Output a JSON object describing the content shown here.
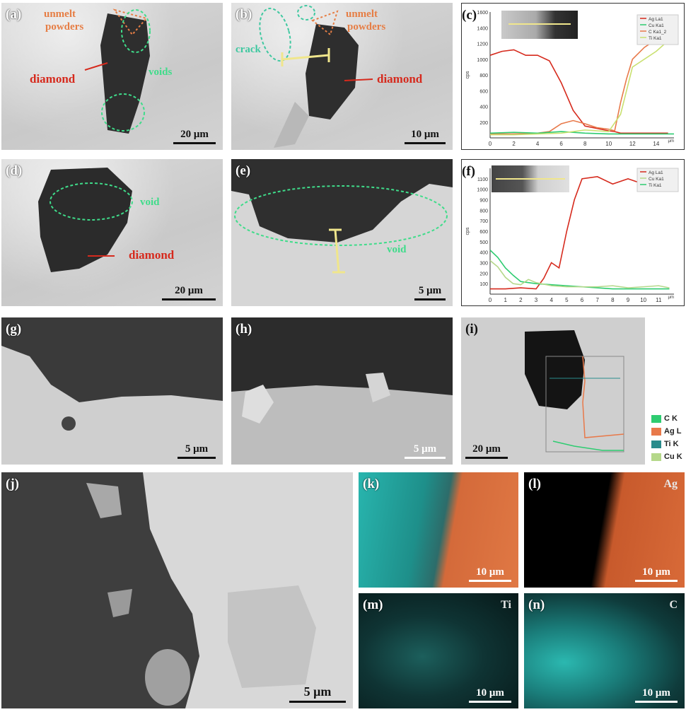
{
  "panels": {
    "a": {
      "label": "(a)",
      "annots": [
        "unmelt",
        "powders",
        "diamond",
        "voids"
      ],
      "scale": "20 μm"
    },
    "b": {
      "label": "(b)",
      "annots": [
        "unmelt",
        "powders",
        "crack",
        "diamond"
      ],
      "scale": "10 μm"
    },
    "c": {
      "label": "(c)"
    },
    "d": {
      "label": "(d)",
      "annots": [
        "void",
        "diamond"
      ],
      "scale": "20 μm"
    },
    "e": {
      "label": "(e)",
      "annots": [
        "void"
      ],
      "scale": "5 μm"
    },
    "f": {
      "label": "(f)"
    },
    "g": {
      "label": "(g)",
      "scale": "5 μm"
    },
    "h": {
      "label": "(h)",
      "scale": "5 μm"
    },
    "i": {
      "label": "(i)",
      "scale": "20 μm",
      "legend": [
        {
          "name": "C K",
          "color": "#2ecc71"
        },
        {
          "name": "Ag L",
          "color": "#e8794a"
        },
        {
          "name": "Ti K",
          "color": "#2a8c8c"
        },
        {
          "name": "Cu K",
          "color": "#b5d88a"
        }
      ]
    },
    "j": {
      "label": "(j)",
      "scale": "5 μm"
    },
    "k": {
      "label": "(k)",
      "scale": "10 μm"
    },
    "l": {
      "label": "(l)",
      "element": "Ag",
      "scale": "10 μm"
    },
    "m": {
      "label": "(m)",
      "element": "Ti",
      "scale": "10 μm"
    },
    "n": {
      "label": "(n)",
      "element": "C",
      "scale": "10 μm"
    }
  },
  "chart_data": [
    {
      "panel": "c",
      "type": "line",
      "xlabel": "μm",
      "ylabel": "cps",
      "xlim": [
        0,
        15.5
      ],
      "ylim": [
        0,
        1600
      ],
      "xticks": [
        0,
        2,
        4,
        6,
        8,
        10,
        12,
        14
      ],
      "yticks": [
        200,
        400,
        600,
        800,
        1000,
        1200,
        1400,
        1600
      ],
      "legend": [
        "Ag La1",
        "Cu Ka1",
        "C Ka1_2",
        "Ti Ka1"
      ],
      "series": [
        {
          "name": "Ag La1",
          "color": "#d62a1d",
          "x": [
            0,
            1,
            2,
            3,
            4,
            5,
            6,
            7,
            8,
            9,
            10,
            10.5,
            11,
            11.5,
            12,
            13,
            14,
            15
          ],
          "y": [
            1050,
            1100,
            1120,
            1050,
            1050,
            980,
            700,
            350,
            150,
            120,
            90,
            80,
            60,
            60,
            60,
            60,
            60,
            60
          ]
        },
        {
          "name": "C Ka1_2",
          "color": "#e8794a",
          "x": [
            0,
            2,
            4,
            5,
            6,
            7,
            8,
            9,
            10,
            10.5,
            11,
            11.5,
            12,
            13,
            14,
            15,
            15.5
          ],
          "y": [
            50,
            50,
            60,
            80,
            180,
            220,
            180,
            130,
            110,
            90,
            450,
            750,
            1000,
            1150,
            1250,
            1400,
            1550
          ]
        },
        {
          "name": "Cu Ka1",
          "color": "#2ecc71",
          "x": [
            0,
            2,
            4,
            6,
            8,
            10,
            12,
            14,
            15.5
          ],
          "y": [
            60,
            70,
            60,
            80,
            60,
            50,
            50,
            50,
            50
          ]
        },
        {
          "name": "Ti Ka1",
          "color": "#c9e070",
          "x": [
            0,
            2,
            4,
            6,
            8,
            10,
            11,
            12,
            14,
            15.5
          ],
          "y": [
            40,
            40,
            50,
            60,
            100,
            80,
            300,
            900,
            1100,
            1300
          ]
        }
      ]
    },
    {
      "panel": "f",
      "type": "line",
      "xlabel": "μm",
      "ylabel": "cps",
      "xlim": [
        0,
        12
      ],
      "ylim": [
        0,
        1200
      ],
      "xticks": [
        0,
        1,
        2,
        3,
        4,
        5,
        6,
        7,
        8,
        9,
        10,
        11
      ],
      "yticks": [
        100,
        200,
        300,
        400,
        500,
        600,
        700,
        800,
        900,
        1000,
        1100
      ],
      "legend": [
        "Ag La1",
        "Cu Ka1",
        "Ti Ka1"
      ],
      "series": [
        {
          "name": "Ag La1",
          "color": "#d62a1d",
          "x": [
            0,
            1,
            2,
            3,
            3.5,
            4,
            4.5,
            5,
            5.5,
            6,
            7,
            8,
            9,
            10,
            11,
            11.7
          ],
          "y": [
            50,
            50,
            60,
            50,
            150,
            300,
            250,
            600,
            900,
            1100,
            1120,
            1050,
            1100,
            1050,
            1080,
            1000
          ]
        },
        {
          "name": "Ti Ka1",
          "color": "#2ecc71",
          "x": [
            0,
            0.5,
            1,
            1.5,
            2,
            3,
            4,
            5,
            6,
            7,
            8,
            9,
            10,
            11,
            11.7
          ],
          "y": [
            420,
            350,
            250,
            180,
            120,
            100,
            90,
            80,
            70,
            60,
            50,
            50,
            50,
            50,
            50
          ]
        },
        {
          "name": "Cu Ka1",
          "color": "#b5d88a",
          "x": [
            0,
            0.5,
            1,
            1.5,
            2,
            2.5,
            3,
            4,
            5,
            6,
            7,
            8,
            9,
            10,
            11,
            11.7
          ],
          "y": [
            320,
            260,
            160,
            100,
            90,
            140,
            110,
            80,
            70,
            70,
            70,
            80,
            60,
            70,
            80,
            60
          ]
        }
      ]
    }
  ]
}
